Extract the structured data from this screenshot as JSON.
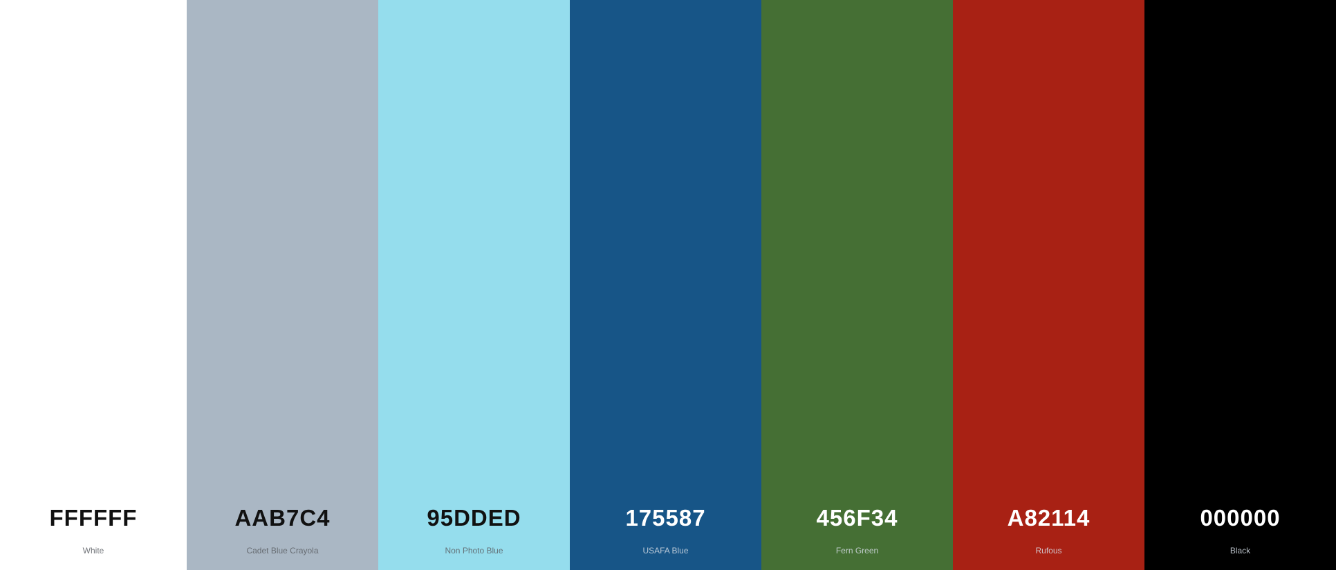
{
  "swatches": [
    {
      "hex": "FFFFFF",
      "name": "White",
      "color": "#FFFFFF",
      "text_tone": "dark"
    },
    {
      "hex": "AAB7C4",
      "name": "Cadet Blue Crayola",
      "color": "#AAB7C4",
      "text_tone": "dark"
    },
    {
      "hex": "95DDED",
      "name": "Non Photo Blue",
      "color": "#95DDED",
      "text_tone": "dark"
    },
    {
      "hex": "175587",
      "name": "USAFA Blue",
      "color": "#175587",
      "text_tone": "light"
    },
    {
      "hex": "456F34",
      "name": "Fern Green",
      "color": "#456F34",
      "text_tone": "light"
    },
    {
      "hex": "A82114",
      "name": "Rufous",
      "color": "#A82114",
      "text_tone": "light"
    },
    {
      "hex": "000000",
      "name": "Black",
      "color": "#000000",
      "text_tone": "light"
    }
  ]
}
